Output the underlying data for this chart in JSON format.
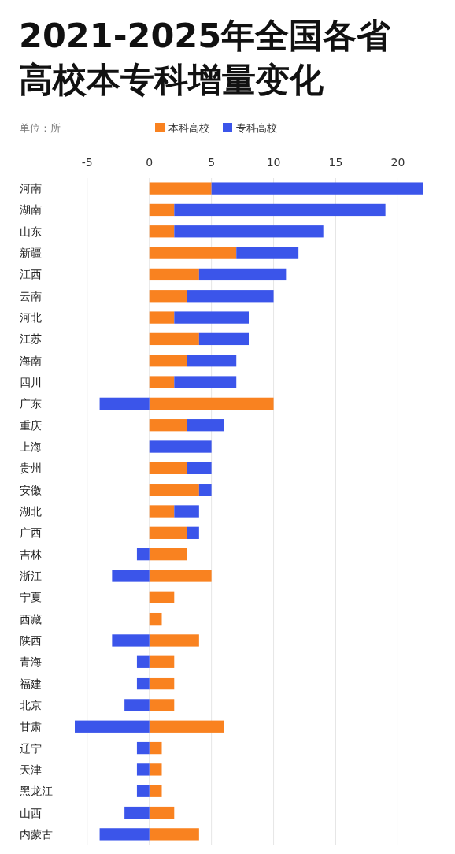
{
  "chart_data": {
    "type": "bar",
    "orientation": "horizontal",
    "stacked": true,
    "title": "2021-2025年全国各省高校本专科增量变化",
    "annotations": [
      "单位：所"
    ],
    "categories": [
      "河南",
      "湖南",
      "山东",
      "新疆",
      "江西",
      "云南",
      "河北",
      "江苏",
      "海南",
      "四川",
      "广东",
      "重庆",
      "上海",
      "贵州",
      "安徽",
      "湖北",
      "广西",
      "吉林",
      "浙江",
      "宁夏",
      "西藏",
      "陕西",
      "青海",
      "福建",
      "北京",
      "甘肃",
      "辽宁",
      "天津",
      "黑龙江",
      "山西",
      "内蒙古"
    ],
    "series": [
      {
        "name": "本科高校",
        "color": "#f98220",
        "values": [
          5,
          2,
          2,
          7,
          4,
          3,
          2,
          4,
          3,
          2,
          10,
          3,
          0,
          3,
          4,
          2,
          3,
          3,
          5,
          2,
          1,
          4,
          2,
          2,
          2,
          6,
          1,
          1,
          1,
          2,
          4
        ]
      },
      {
        "name": "专科高校",
        "color": "#3b55ea",
        "values": [
          17,
          17,
          12,
          5,
          7,
          7,
          6,
          4,
          4,
          5,
          -4,
          3,
          5,
          2,
          1,
          2,
          1,
          -1,
          -3,
          0,
          0,
          -3,
          -1,
          -1,
          -2,
          -6,
          -1,
          -1,
          -1,
          -2,
          -4
        ]
      }
    ],
    "xlim": [
      -6,
      22
    ],
    "xticks": [
      -5,
      0,
      5,
      10,
      15,
      20
    ],
    "grid": "x",
    "legend": "top"
  }
}
